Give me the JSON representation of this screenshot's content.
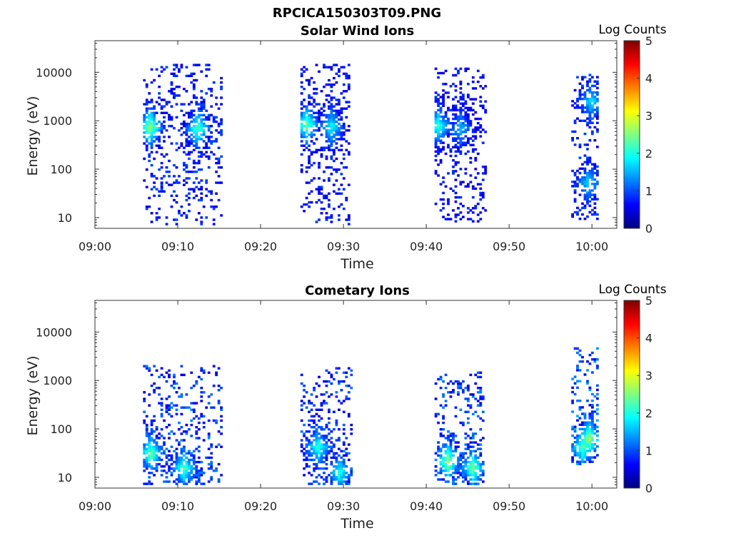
{
  "figure_title": "RPCICA150303T09.PNG",
  "colormap": [
    "#00007f",
    "#0000ff",
    "#0080ff",
    "#00ffff",
    "#80ff80",
    "#ffff00",
    "#ff8000",
    "#ff0000",
    "#7f0000"
  ],
  "chart_data": [
    {
      "type": "heatmap",
      "title": "Solar Wind Ions",
      "xlabel": "Time",
      "ylabel": "Energy (eV)",
      "x_ticks": [
        "09:00",
        "09:10",
        "09:20",
        "09:30",
        "09:40",
        "09:50",
        "10:00"
      ],
      "xlim_minutes_after_0900": [
        0,
        63
      ],
      "y_scale": "log",
      "ylim": [
        6,
        45000
      ],
      "y_ticks": [
        10,
        100,
        1000,
        10000
      ],
      "y_tick_labels": [
        "10",
        "100",
        "1000",
        "10000"
      ],
      "colorbar": {
        "label": "Log Counts",
        "range": [
          0,
          5
        ],
        "ticks": [
          "0",
          "1",
          "2",
          "3",
          "4",
          "5"
        ]
      },
      "clusters": [
        {
          "t0": 5.8,
          "t1": 15.2,
          "e_lo": 7,
          "e_hi": 14000,
          "core": [
            6.5,
            700,
            2.2
          ],
          "core2": [
            12.3,
            650,
            1.8
          ],
          "mean": 0.6
        },
        {
          "t0": 24.8,
          "t1": 30.8,
          "e_lo": 7,
          "e_hi": 14000,
          "core": [
            25.4,
            800,
            1.9
          ],
          "core2": [
            28.4,
            700,
            1.4
          ],
          "mean": 0.5
        },
        {
          "t0": 41.0,
          "t1": 47.2,
          "e_lo": 8,
          "e_hi": 12000,
          "core": [
            41.3,
            750,
            1.6
          ],
          "core2": [
            44.0,
            650,
            1.0
          ],
          "mean": 0.45
        },
        {
          "t0": 57.5,
          "t1": 60.5,
          "e_lo": 9,
          "e_hi": 9000,
          "core": [
            59.8,
            2400,
            1.3
          ],
          "core2": [
            59.5,
            50,
            1.2
          ],
          "mean": 0.6
        }
      ]
    },
    {
      "type": "heatmap",
      "title": "Cometary Ions",
      "xlabel": "Time",
      "ylabel": "Energy (eV)",
      "x_ticks": [
        "09:00",
        "09:10",
        "09:20",
        "09:30",
        "09:40",
        "09:50",
        "10:00"
      ],
      "xlim_minutes_after_0900": [
        0,
        63
      ],
      "y_scale": "log",
      "ylim": [
        6,
        45000
      ],
      "y_ticks": [
        10,
        100,
        1000,
        10000
      ],
      "y_tick_labels": [
        "10",
        "100",
        "1000",
        "10000"
      ],
      "colorbar": {
        "label": "Log Counts",
        "range": [
          0,
          5
        ],
        "ticks": [
          "0",
          "1",
          "2",
          "3",
          "4",
          "5"
        ]
      },
      "clusters": [
        {
          "t0": 5.8,
          "t1": 15.3,
          "e_lo": 7,
          "e_hi": 2000,
          "core": [
            6.6,
            30,
            2.0
          ],
          "core2": [
            10.6,
            15,
            1.8
          ],
          "mean": 0.9
        },
        {
          "t0": 24.8,
          "t1": 31.0,
          "e_lo": 7,
          "e_hi": 1800,
          "core": [
            26.8,
            40,
            1.6
          ],
          "core2": [
            29.4,
            12,
            1.5
          ],
          "mean": 0.8
        },
        {
          "t0": 41.0,
          "t1": 46.8,
          "e_lo": 7,
          "e_hi": 1400,
          "core": [
            42.5,
            20,
            2.2
          ],
          "core2": [
            45.5,
            15,
            2.0
          ],
          "mean": 0.9
        },
        {
          "t0": 57.5,
          "t1": 60.5,
          "e_lo": 18,
          "e_hi": 4800,
          "core": [
            59.5,
            60,
            2.2
          ],
          "core2": [
            58.8,
            40,
            1.9
          ],
          "mean": 1.1
        }
      ]
    }
  ]
}
